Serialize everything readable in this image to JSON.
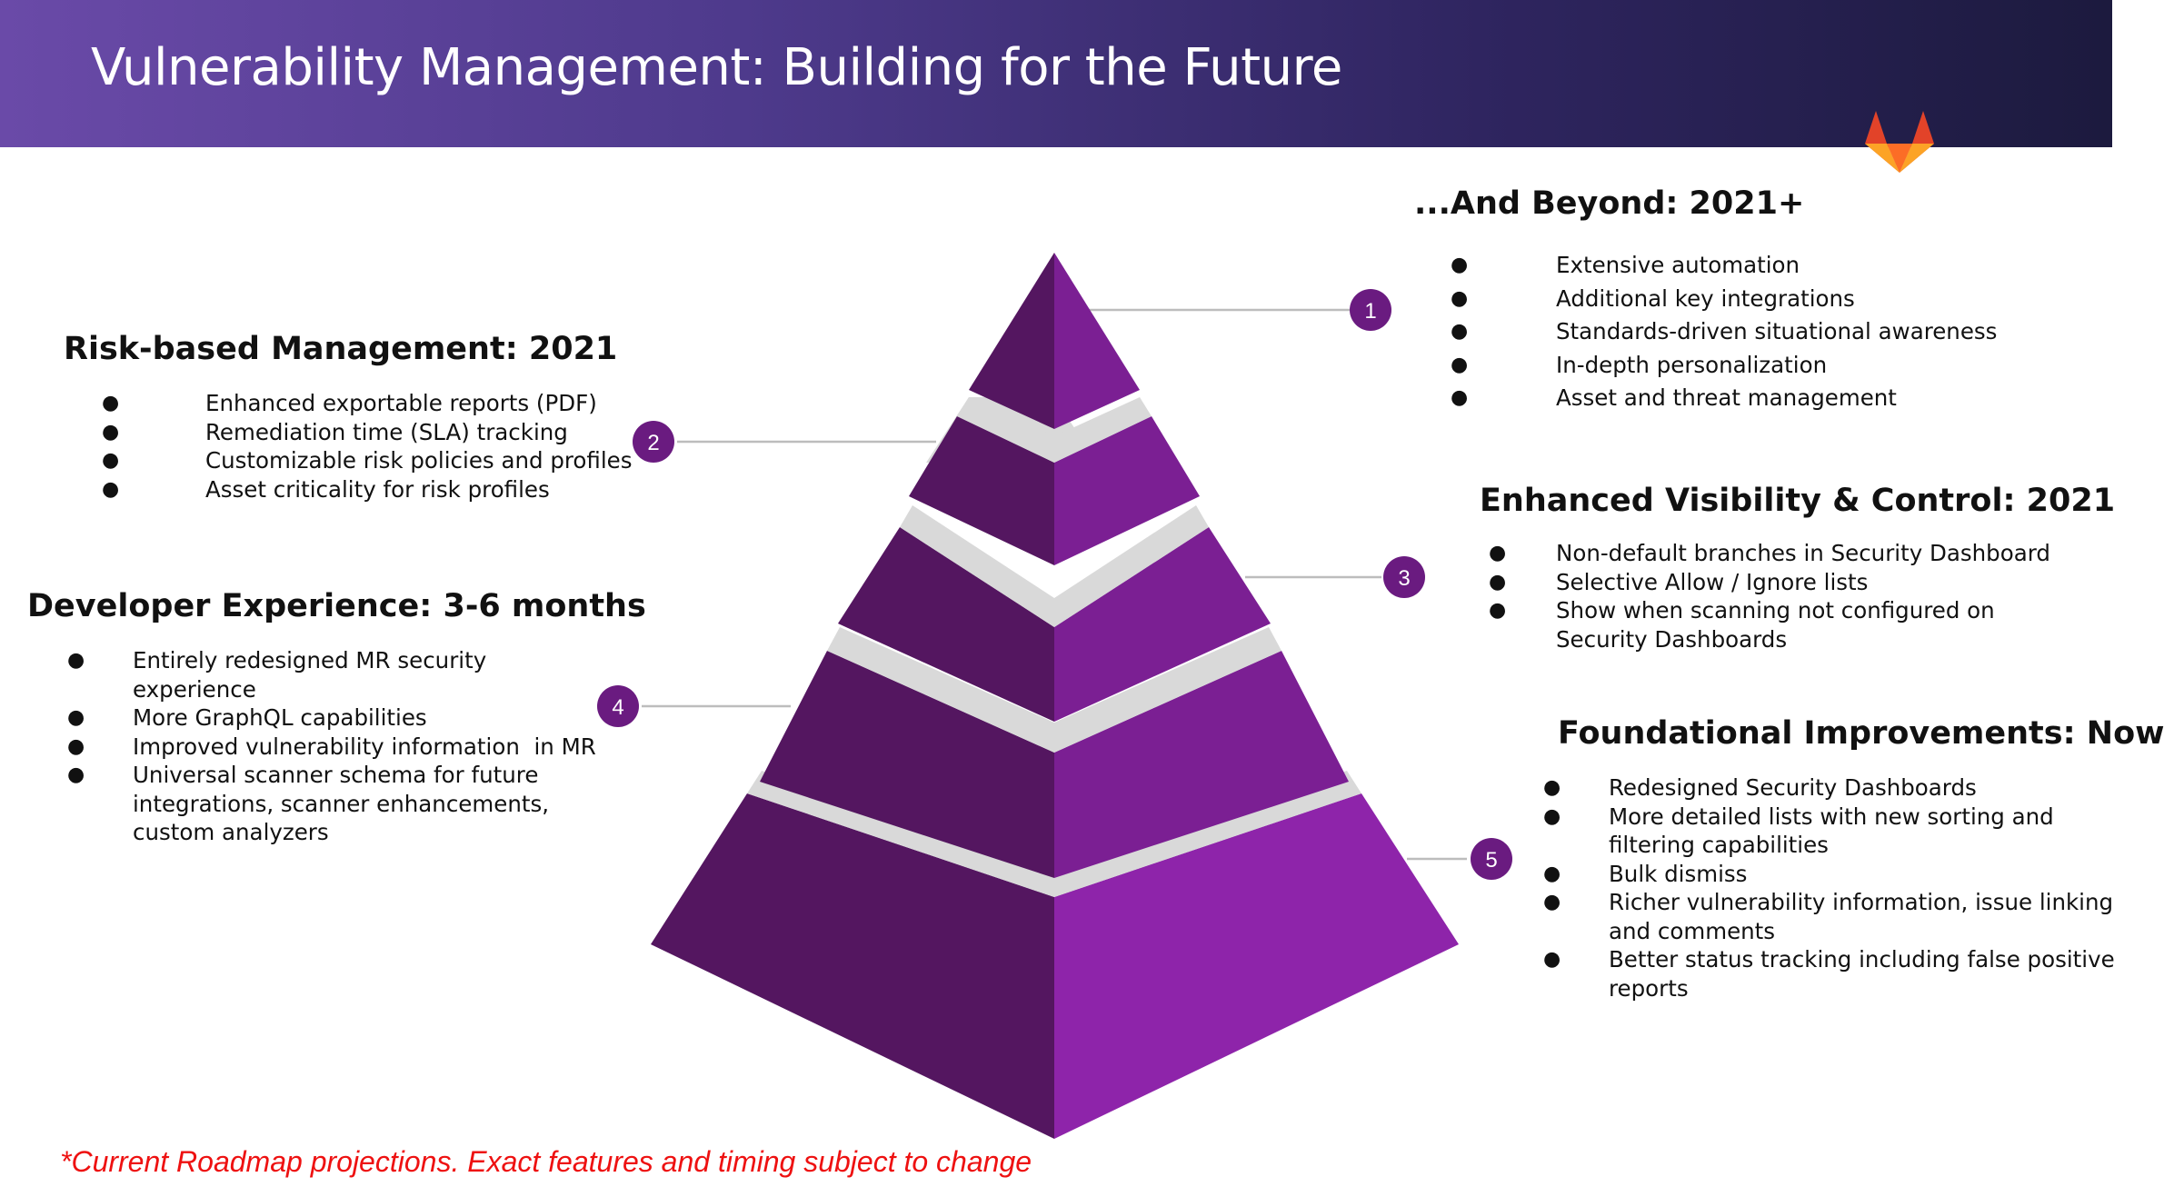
{
  "slide": {
    "title": "Vulnerability Management: Building for the Future",
    "footnote": "*Current Roadmap projections. Exact features and timing subject to change"
  },
  "logo": {
    "icon": "gitlab-fox-icon",
    "colors": [
      "#e24329",
      "#fc6d26",
      "#fca326"
    ]
  },
  "pyramid": {
    "colors": {
      "left": "#541660",
      "right": "#7b1f93",
      "right_base": "#8e24aa",
      "gap": "#d9d9d9",
      "badge": "#6a1b80",
      "connector": "#bdbdbd"
    },
    "steps": [
      "1",
      "2",
      "3",
      "4",
      "5"
    ]
  },
  "sections": {
    "beyond": {
      "title": "...And Beyond: 2021+",
      "items": [
        "Extensive automation",
        "Additional key integrations",
        "Standards-driven situational awareness",
        "In-depth personalization",
        "Asset and threat management"
      ]
    },
    "risk": {
      "title": "Risk-based Management: 2021",
      "items": [
        "Enhanced exportable reports (PDF)",
        "Remediation time (SLA) tracking",
        "Customizable risk policies and profiles",
        "Asset criticality for risk profiles"
      ]
    },
    "visibility": {
      "title": "Enhanced Visibility & Control: 2021",
      "items": [
        [
          "Non-default branches in Security Dashboard"
        ],
        [
          "Selective Allow / Ignore lists"
        ],
        [
          "Show when scanning not configured on",
          "Security Dashboards"
        ]
      ]
    },
    "developer": {
      "title": "Developer Experience: 3-6 months",
      "items": [
        [
          "Entirely redesigned MR security",
          "experience"
        ],
        [
          "More GraphQL capabilities"
        ],
        [
          "Improved vulnerability information  in MR"
        ],
        [
          "Universal scanner schema for future",
          "integrations, scanner enhancements,",
          "custom analyzers"
        ]
      ]
    },
    "foundational": {
      "title": "Foundational Improvements: Now",
      "items": [
        [
          "Redesigned Security Dashboards"
        ],
        [
          "More detailed lists with new sorting and",
          "filtering capabilities"
        ],
        [
          "Bulk dismiss"
        ],
        [
          "Richer vulnerability information, issue linking",
          "and comments"
        ],
        [
          "Better status tracking including false positive",
          "reports"
        ]
      ]
    }
  }
}
